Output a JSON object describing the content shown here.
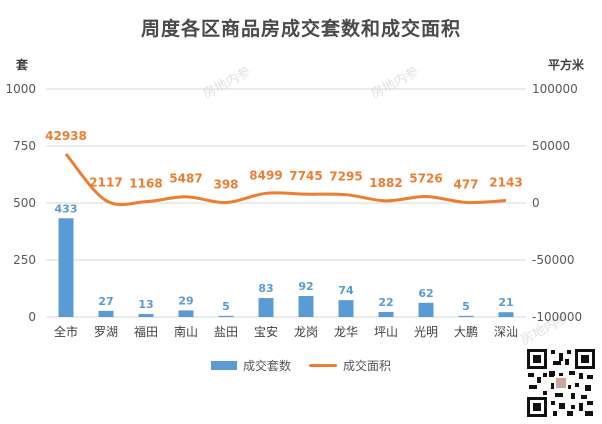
{
  "title": "周度各区商品房成交套数和成交面积",
  "watermark": "房地内参",
  "legend": {
    "bar_label": "成交套数",
    "line_label": "成交面积"
  },
  "colors": {
    "bar": "#5b9bd5",
    "line": "#ed7d31",
    "grid": "#d9d9d9",
    "axis_text": "#595959"
  },
  "chart_data": {
    "type": "bar",
    "categories": [
      "全市",
      "罗湖",
      "福田",
      "南山",
      "盐田",
      "宝安",
      "龙岗",
      "龙华",
      "坪山",
      "光明",
      "大鹏",
      "深汕"
    ],
    "series": [
      {
        "name": "成交套数",
        "type": "bar",
        "axis": "left",
        "values": [
          433,
          27,
          13,
          29,
          5,
          83,
          92,
          74,
          22,
          62,
          5,
          21
        ]
      },
      {
        "name": "成交面积",
        "type": "line",
        "axis": "right",
        "values": [
          42938,
          2117,
          1168,
          5487,
          398,
          8499,
          7745,
          7295,
          1882,
          5726,
          477,
          2143
        ]
      }
    ],
    "y_left": {
      "label": "套",
      "range": [
        0,
        1000
      ],
      "ticks": [
        0,
        250,
        500,
        750,
        1000
      ]
    },
    "y_right": {
      "label": "平方米",
      "range": [
        -100000,
        100000
      ],
      "ticks": [
        -100000,
        -50000,
        0,
        50000,
        100000
      ]
    },
    "grid": true,
    "legend_position": "bottom"
  }
}
